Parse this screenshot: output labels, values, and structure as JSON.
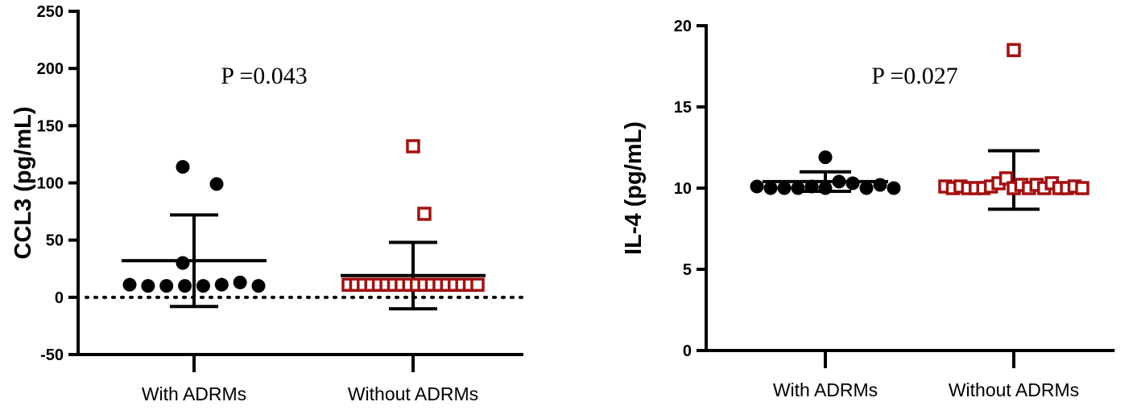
{
  "chart_data": [
    {
      "type": "scatter",
      "title": "",
      "ylabel": "CCL3 (pg/mL)",
      "xlabel": "",
      "ylim": [
        -50,
        250
      ],
      "yticks": [
        -50,
        0,
        50,
        100,
        150,
        200,
        250
      ],
      "categories": [
        "With ADRMs",
        "Without ADRMs"
      ],
      "annotation": "P =0.043",
      "reference_line": 0,
      "series": [
        {
          "category": "With ADRMs",
          "color": "#000000",
          "marker": "filled-circle",
          "values": [
            114,
            99,
            30,
            11,
            10,
            10,
            10,
            10,
            11,
            13,
            10
          ],
          "mean": 32,
          "sd_low": -8,
          "sd_high": 72
        },
        {
          "category": "Without ADRMs",
          "color": "#a50f0f",
          "marker": "open-square",
          "values": [
            132,
            73,
            11,
            11,
            11,
            11,
            11,
            11,
            11,
            11,
            11,
            11,
            11,
            11,
            11,
            11,
            11,
            11,
            11,
            11
          ],
          "mean": 19,
          "sd_low": -10,
          "sd_high": 48
        }
      ]
    },
    {
      "type": "scatter",
      "title": "",
      "ylabel": "IL-4 (pg/mL)",
      "xlabel": "",
      "ylim": [
        0,
        20
      ],
      "yticks": [
        0,
        5,
        10,
        15,
        20
      ],
      "categories": [
        "With ADRMs",
        "Without ADRMs"
      ],
      "annotation": "P =0.027",
      "series": [
        {
          "category": "With ADRMs",
          "color": "#000000",
          "marker": "filled-circle",
          "values": [
            10.1,
            10.0,
            10.0,
            10.0,
            10.1,
            10.0,
            10.4,
            11.9,
            10.3,
            10.0,
            10.2,
            10.0
          ],
          "mean": 10.4,
          "sd_low": 9.8,
          "sd_high": 11.0
        },
        {
          "category": "Without ADRMs",
          "color": "#a50f0f",
          "marker": "open-square",
          "values": [
            18.5,
            10.1,
            10.0,
            10.1,
            10.0,
            10.0,
            10.0,
            10.1,
            10.3,
            10.6,
            10.0,
            10.2,
            10.0,
            10.2,
            10.0,
            10.3,
            10.0,
            10.0,
            10.1,
            10.0
          ],
          "mean": 10.3,
          "sd_low": 8.7,
          "sd_high": 12.3
        }
      ]
    }
  ]
}
